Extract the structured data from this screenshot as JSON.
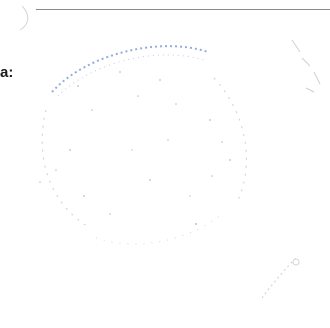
{
  "document": {
    "label_text": "a:"
  },
  "stamp": {
    "description_icon": "faded-seal-stamp-icon",
    "ink_color": "#7f9fd6",
    "faint_color": "#c7c7c7"
  }
}
